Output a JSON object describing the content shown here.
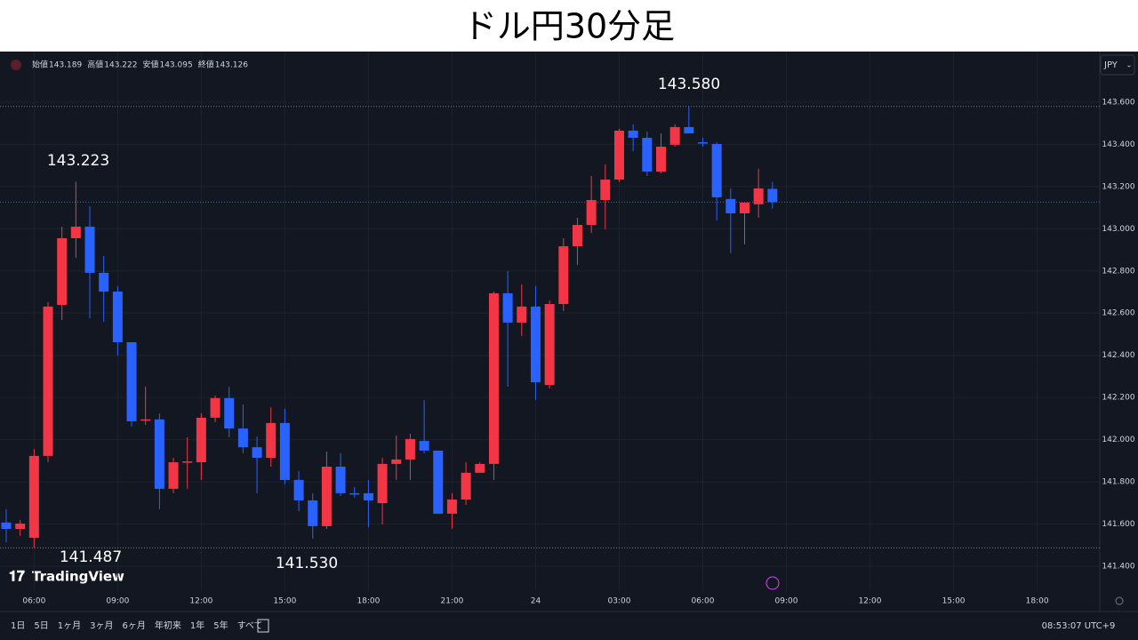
{
  "title": "ドル円30分足",
  "ui": {
    "currency": "JPY",
    "logo": "TradingView",
    "clock": "08:53:07 UTC+9",
    "ranges": [
      "1日",
      "5日",
      "1ヶ月",
      "3ヶ月",
      "6ヶ月",
      "年初来",
      "1年",
      "5年",
      "すべて"
    ],
    "ohlc_labels": [
      "始値",
      "高値",
      "安値",
      "終値"
    ]
  },
  "chart_data": {
    "type": "candlestick",
    "up_color": "#f23645",
    "down_color": "#2962ff",
    "grid": true,
    "categories": [
      "",
      null,
      "06:00",
      null,
      null,
      null,
      null,
      null,
      "09:00",
      null,
      null,
      null,
      null,
      null,
      "12:00",
      null,
      null,
      null,
      null,
      null,
      "15:00",
      null,
      null,
      null,
      null,
      null,
      "18:00",
      null,
      null,
      null,
      null,
      null,
      "21:00",
      null,
      null,
      null,
      null,
      null,
      "24",
      null,
      null,
      null,
      null,
      null,
      "03:00",
      null,
      null,
      null,
      null,
      null,
      "06:00",
      null,
      null,
      null,
      null,
      null,
      "09:00",
      null,
      null,
      null,
      null,
      null,
      "12:00",
      null,
      null,
      null,
      null,
      null,
      "15:00",
      null,
      null,
      null,
      null,
      null,
      "18:00",
      null,
      null,
      null,
      null
    ],
    "open": [
      141.607,
      141.577,
      141.535,
      141.923,
      142.639,
      142.955,
      143.01,
      142.791,
      142.702,
      142.462,
      142.091,
      142.096,
      141.767,
      141.893,
      141.893,
      142.104,
      142.197,
      142.053,
      141.964,
      141.914,
      142.079,
      141.809,
      141.712,
      141.59,
      141.872,
      141.746,
      141.746,
      141.699,
      141.885,
      141.906,
      141.994,
      141.948,
      141.649,
      141.716,
      141.843,
      141.885,
      142.694,
      142.555,
      142.631,
      142.259,
      142.643,
      142.917,
      143.018,
      143.136,
      143.233,
      143.465,
      143.431,
      143.271,
      143.398,
      143.482,
      143.41,
      143.402,
      143.141,
      143.073,
      143.116,
      143.189,
      null,
      null,
      null,
      null,
      null,
      null,
      null,
      null,
      null,
      null,
      null,
      null,
      null,
      null,
      null,
      null,
      null,
      null,
      null,
      null,
      null,
      null,
      null
    ],
    "high": [
      141.67,
      141.619,
      141.956,
      142.652,
      143.01,
      143.223,
      143.107,
      142.871,
      142.728,
      142.462,
      142.251,
      142.125,
      141.914,
      142.011,
      142.125,
      142.209,
      142.251,
      142.167,
      142.015,
      142.154,
      142.146,
      141.851,
      141.746,
      141.944,
      141.935,
      141.775,
      141.809,
      141.914,
      142.02,
      142.028,
      142.188,
      141.948,
      141.746,
      141.893,
      141.893,
      142.702,
      142.799,
      142.736,
      142.728,
      142.66,
      142.955,
      143.052,
      143.25,
      143.305,
      143.474,
      143.495,
      143.461,
      143.452,
      143.495,
      143.58,
      143.431,
      143.41,
      143.191,
      143.124,
      143.284,
      143.222,
      null,
      null,
      null,
      null,
      null,
      null,
      null,
      null,
      null,
      null,
      null,
      null,
      null,
      null,
      null,
      null,
      null,
      null,
      null,
      null,
      null,
      null,
      null
    ],
    "low": [
      141.514,
      141.543,
      141.487,
      141.893,
      142.567,
      142.862,
      142.576,
      142.559,
      142.399,
      142.062,
      142.07,
      141.67,
      141.746,
      141.767,
      141.809,
      142.083,
      142.011,
      141.935,
      141.746,
      141.872,
      141.788,
      141.661,
      141.53,
      141.577,
      141.733,
      141.725,
      141.585,
      141.598,
      141.809,
      141.809,
      141.935,
      141.649,
      141.577,
      141.691,
      141.843,
      141.809,
      142.251,
      142.492,
      142.188,
      142.243,
      142.61,
      142.829,
      142.98,
      142.997,
      143.221,
      143.368,
      143.25,
      143.263,
      143.389,
      143.452,
      143.389,
      143.039,
      142.884,
      142.926,
      143.052,
      143.095,
      null,
      null,
      null,
      null,
      null,
      null,
      null,
      null,
      null,
      null,
      null,
      null,
      null,
      null,
      null,
      null,
      null,
      null,
      null,
      null,
      null,
      null,
      null
    ],
    "close": [
      141.577,
      141.602,
      141.923,
      142.631,
      142.955,
      143.01,
      142.791,
      142.702,
      142.462,
      142.087,
      142.096,
      141.767,
      141.893,
      141.897,
      142.104,
      142.197,
      142.053,
      141.964,
      141.914,
      142.079,
      141.809,
      141.712,
      141.59,
      141.872,
      141.746,
      141.742,
      141.712,
      141.885,
      141.906,
      142.003,
      141.948,
      141.649,
      141.716,
      141.843,
      141.885,
      142.694,
      142.555,
      142.631,
      142.272,
      142.643,
      142.917,
      143.018,
      143.136,
      143.233,
      143.465,
      143.431,
      143.271,
      143.389,
      143.482,
      143.452,
      143.406,
      143.149,
      143.073,
      143.124,
      143.191,
      143.126,
      null,
      null,
      null,
      null,
      null,
      null,
      null,
      null,
      null,
      null,
      null,
      null,
      null,
      null,
      null,
      null,
      null,
      null,
      null,
      null,
      null,
      null,
      null
    ],
    "ylim": [
      141.282,
      143.84
    ],
    "yticks": [
      {
        "value": 141.4,
        "label": "141.400"
      },
      {
        "value": 141.6,
        "label": "141.600"
      },
      {
        "value": 141.8,
        "label": "141.800"
      },
      {
        "value": 142.0,
        "label": "142.000"
      },
      {
        "value": 142.2,
        "label": "142.200"
      },
      {
        "value": 142.4,
        "label": "142.400"
      },
      {
        "value": 142.6,
        "label": "142.600"
      },
      {
        "value": 142.8,
        "label": "142.800"
      },
      {
        "value": 143.0,
        "label": "143.000"
      },
      {
        "value": 143.2,
        "label": "143.200"
      },
      {
        "value": 143.4,
        "label": "143.400"
      },
      {
        "value": 143.6,
        "label": "143.600"
      }
    ],
    "annotations": [
      "143.223",
      "141.487",
      "143.580",
      "141.530"
    ]
  }
}
